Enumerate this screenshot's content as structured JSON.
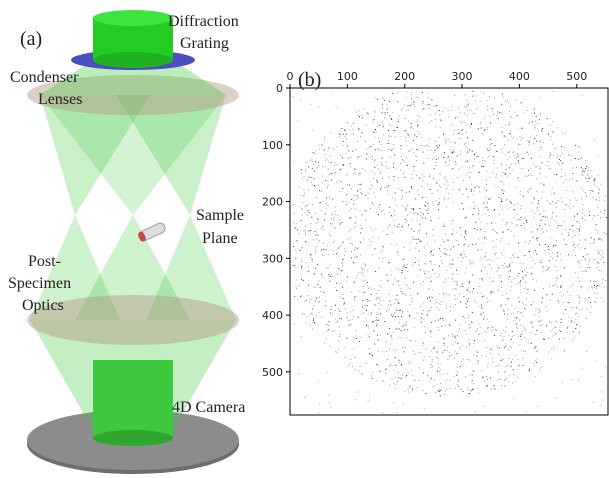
{
  "panel_a": {
    "label": "(a)",
    "labels": [
      {
        "lines": [
          "Diffraction",
          "Grating"
        ]
      },
      {
        "lines": [
          "Condenser",
          "Lenses"
        ]
      },
      {
        "lines": [
          "Sample",
          "Plane"
        ]
      },
      {
        "lines": [
          "Post-",
          "Specimen",
          "Optics"
        ]
      },
      {
        "lines": [
          "4D Camera"
        ]
      }
    ]
  },
  "panel_b": {
    "label": "(b)",
    "xlim": [
      0,
      556
    ],
    "ylim": [
      576,
      0
    ],
    "xticks": [
      0,
      100,
      200,
      300,
      400,
      500
    ],
    "yticks": [
      0,
      100,
      200,
      300,
      400,
      500
    ]
  }
}
